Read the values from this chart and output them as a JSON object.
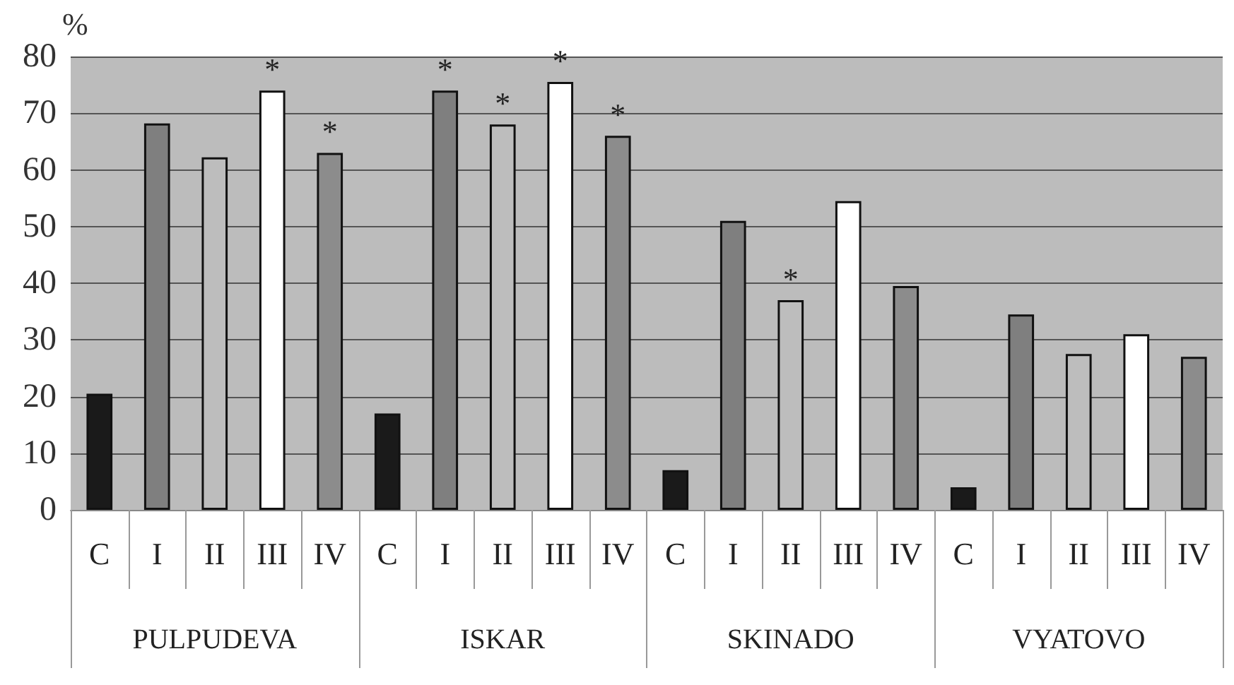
{
  "chart_data": {
    "type": "bar",
    "ylabel": "%",
    "categories": [
      "PULPUDEVA",
      "ISKAR",
      "SKINADO",
      "VYATOVO"
    ],
    "series": [
      {
        "name": "C",
        "color": "#1a1a1a",
        "values": [
          20.5,
          17,
          7,
          4
        ]
      },
      {
        "name": "I",
        "color": "#7f7f7f",
        "values": [
          68.2,
          74,
          51,
          34.5
        ],
        "value_labels": [
          null,
          "*",
          null,
          null
        ]
      },
      {
        "name": "II",
        "color": "#bdbdbd",
        "values": [
          62.2,
          68,
          37,
          27.5
        ],
        "value_labels": [
          null,
          "*",
          "*",
          null
        ]
      },
      {
        "name": "III",
        "color": "#ffffff",
        "values": [
          74,
          75.5,
          54.5,
          31
        ],
        "value_labels": [
          "*",
          "*",
          null,
          null
        ]
      },
      {
        "name": "IV",
        "color": "#8c8c8c",
        "values": [
          63,
          66,
          39.5,
          27
        ],
        "value_labels": [
          "*",
          "*",
          null,
          null
        ]
      }
    ],
    "ylim": [
      0,
      80
    ],
    "yticks": [
      0,
      10,
      20,
      30,
      40,
      50,
      60,
      70,
      80
    ],
    "grid": "y",
    "legend": false
  }
}
